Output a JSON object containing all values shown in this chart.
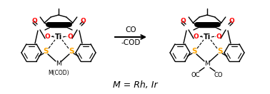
{
  "title": "M = Rh, Ir",
  "arrow_label_top": "CO",
  "arrow_label_bottom": "-COD",
  "background_color": "#ffffff",
  "fig_width": 3.78,
  "fig_height": 1.32,
  "dpi": 100,
  "colors": {
    "oxygen": "#ff0000",
    "sulfur": "#ffa500",
    "black": "#000000",
    "background": "#ffffff"
  }
}
